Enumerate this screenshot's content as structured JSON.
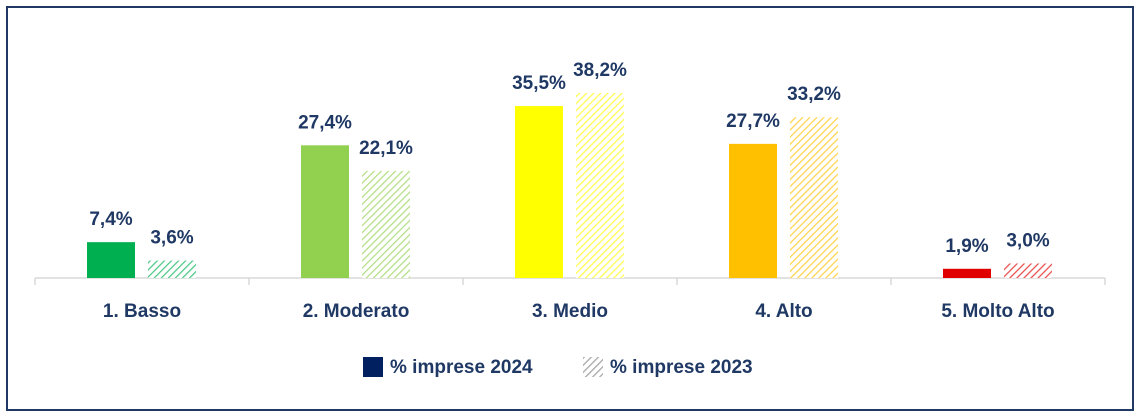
{
  "chart_data": {
    "type": "bar",
    "categories": [
      "1. Basso",
      "2. Moderato",
      "3. Medio",
      "4. Alto",
      "5. Molto Alto"
    ],
    "category_colors": [
      "#00b050",
      "#92d050",
      "#ffff00",
      "#ffc000",
      "#e00000"
    ],
    "series": [
      {
        "name": "% imprese 2024",
        "color": "#002060",
        "pattern": "solid",
        "values": [
          7.4,
          27.4,
          35.5,
          27.7,
          1.9
        ],
        "value_labels": [
          "7,4%",
          "27,4%",
          "35,5%",
          "27,7%",
          "1,9%"
        ]
      },
      {
        "name": "% imprese 2023",
        "color": "#002060",
        "pattern": "hatched",
        "values": [
          3.6,
          22.1,
          38.2,
          33.2,
          3.0
        ],
        "value_labels": [
          "3,6%",
          "22,1%",
          "38,2%",
          "33,2%",
          "3,0%"
        ]
      }
    ]
  }
}
